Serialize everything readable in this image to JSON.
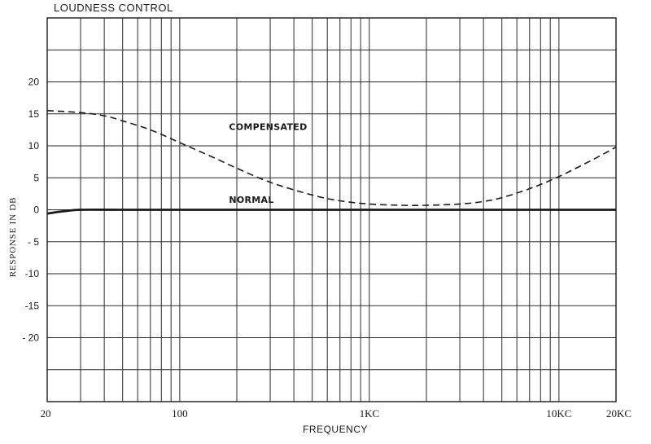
{
  "chart_data": {
    "type": "line",
    "title": "LOUDNESS CONTROL",
    "xlabel": "FREQUENCY",
    "ylabel": "RESPONSE IN DB",
    "x_scale": "log",
    "xlim": [
      20,
      20000
    ],
    "ylim": [
      -30,
      30
    ],
    "grid": true,
    "x_tick_labels": [
      {
        "value": 20,
        "label": "20"
      },
      {
        "value": 100,
        "label": "100"
      },
      {
        "value": 1000,
        "label": "1KC"
      },
      {
        "value": 10000,
        "label": "10KC"
      },
      {
        "value": 20000,
        "label": "20KC"
      }
    ],
    "y_tick_labels": [
      {
        "value": 20,
        "label": "20"
      },
      {
        "value": 15,
        "label": "15"
      },
      {
        "value": 10,
        "label": "10"
      },
      {
        "value": 5,
        "label": "5"
      },
      {
        "value": 0,
        "label": "0"
      },
      {
        "value": -5,
        "label": "- 5"
      },
      {
        "value": -10,
        "label": "-10"
      },
      {
        "value": -15,
        "label": "-15"
      },
      {
        "value": -20,
        "label": "- 20"
      }
    ],
    "series": [
      {
        "name": "COMPENSATED",
        "style": "dashed",
        "label_at": {
          "x": 270,
          "y": 12.5
        },
        "x": [
          20,
          30,
          40,
          50,
          70,
          100,
          150,
          200,
          300,
          500,
          700,
          1000,
          1500,
          2000,
          3000,
          4000,
          5000,
          7000,
          10000,
          15000,
          20000
        ],
        "y": [
          15.5,
          15.2,
          14.7,
          13.9,
          12.5,
          10.5,
          8.2,
          6.5,
          4.3,
          2.3,
          1.4,
          0.9,
          0.7,
          0.7,
          0.9,
          1.3,
          1.9,
          3.3,
          5.2,
          7.8,
          9.8
        ]
      },
      {
        "name": "NORMAL",
        "style": "solid",
        "label_at": {
          "x": 270,
          "y": 1.1
        },
        "x": [
          20,
          22,
          25,
          30,
          50,
          100,
          1000,
          10000,
          20000
        ],
        "y": [
          -0.6,
          -0.4,
          -0.2,
          0,
          0,
          0,
          0,
          0,
          0
        ]
      }
    ]
  }
}
